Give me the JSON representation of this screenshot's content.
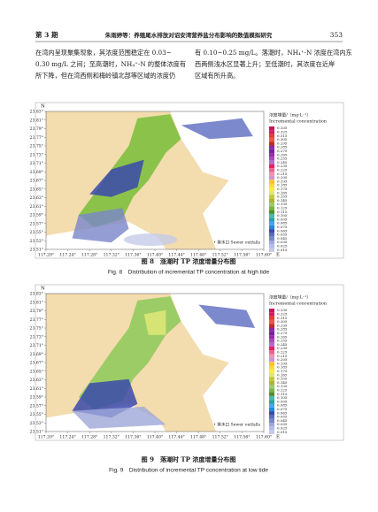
{
  "header": {
    "issue": "第 3 期",
    "running_title": "朱雨婷等：养殖尾水排放对诏安湾营养盐分布影响的数值模拟研究",
    "page": "353"
  },
  "body": {
    "left": [
      "在湾内呈现聚集现象，其浓度范围稳定在 0.03~",
      "0.30 mg/L 之间；至高潮时，NH₄⁺-N 的整体浓度有",
      "所下降，但在湾西侧和梅岭镇北部等区域的浓度仍"
    ],
    "right": [
      "有 0.10~0.25 mg/L。落潮时，NH₄⁺-N 浓度在湾内东",
      "西两侧浅水区显著上升；至低潮时，其浓度在近岸",
      "区域有所升高。"
    ]
  },
  "figures": [
    {
      "north": "N",
      "east": "E",
      "lat_ticks": [
        "23.83°",
        "23.81°",
        "23.79°",
        "23.77°",
        "23.75°",
        "23.73°",
        "23.71°",
        "23.69°",
        "23.67°",
        "23.65°",
        "23.63°",
        "23.61°",
        "23.59°",
        "23.57°",
        "23.55°",
        "23.53°",
        "23.51°"
      ],
      "lon_ticks": [
        "117.20°",
        "117.24°",
        "117.28°",
        "117.32°",
        "117.36°",
        "117.40°",
        "117.44°",
        "117.48°",
        "117.52°",
        "117.56°",
        "117.60°"
      ],
      "legend_title_cn": "浓度增量/（mg·L⁻¹）",
      "legend_title_en": "Incremental concentration",
      "legend_values": [
        "0.335",
        "0.325",
        "0.315",
        "0.305",
        "0.295",
        "0.285",
        "0.275",
        "0.265",
        "0.255",
        "0.245",
        "0.235",
        "0.225",
        "0.215",
        "0.205",
        "0.195",
        "0.185",
        "0.175",
        "0.165",
        "0.155",
        "0.145",
        "0.135",
        "0.125",
        "0.115",
        "0.105",
        "0.095",
        "0.085",
        "0.075",
        "0.065",
        "0.055",
        "0.045",
        "0.035",
        "0.025",
        "0.015"
      ],
      "outfall_label": "• 排水口 Sewer outfalls",
      "caption_cn": "图 8　涨潮时 TP 浓度增量分布图",
      "caption_en": "Fig. 8　Distribution of incremental TP concentration at high tide"
    },
    {
      "north": "N",
      "east": "E",
      "lat_ticks": [
        "23.83°",
        "23.81°",
        "23.79°",
        "23.77°",
        "23.75°",
        "23.73°",
        "23.71°",
        "23.69°",
        "23.67°",
        "23.65°",
        "23.63°",
        "23.61°",
        "23.59°",
        "23.57°",
        "23.55°",
        "23.53°",
        "23.51°"
      ],
      "lon_ticks": [
        "117.20°",
        "117.24°",
        "117.28°",
        "117.32°",
        "117.36°",
        "117.40°",
        "117.44°",
        "117.48°",
        "117.52°",
        "117.56°",
        "117.60°"
      ],
      "legend_title_cn": "浓度增量/（mg·L⁻¹）",
      "legend_title_en": "Incremental concentration",
      "legend_values": [
        "0.335",
        "0.325",
        "0.315",
        "0.305",
        "0.295",
        "0.285",
        "0.275",
        "0.265",
        "0.255",
        "0.245",
        "0.235",
        "0.225",
        "0.215",
        "0.205",
        "0.195",
        "0.185",
        "0.175",
        "0.165",
        "0.155",
        "0.145",
        "0.135",
        "0.125",
        "0.115",
        "0.105",
        "0.095",
        "0.085",
        "0.075",
        "0.065",
        "0.055",
        "0.045",
        "0.035",
        "0.025",
        "0.015"
      ],
      "outfall_label": "• 排水口 Sewer outfalls",
      "caption_cn": "图 9　落潮时 TP 浓度增量分布图",
      "caption_en": "Fig. 9　Distribution of incremental TP concentration at low tide"
    }
  ]
}
